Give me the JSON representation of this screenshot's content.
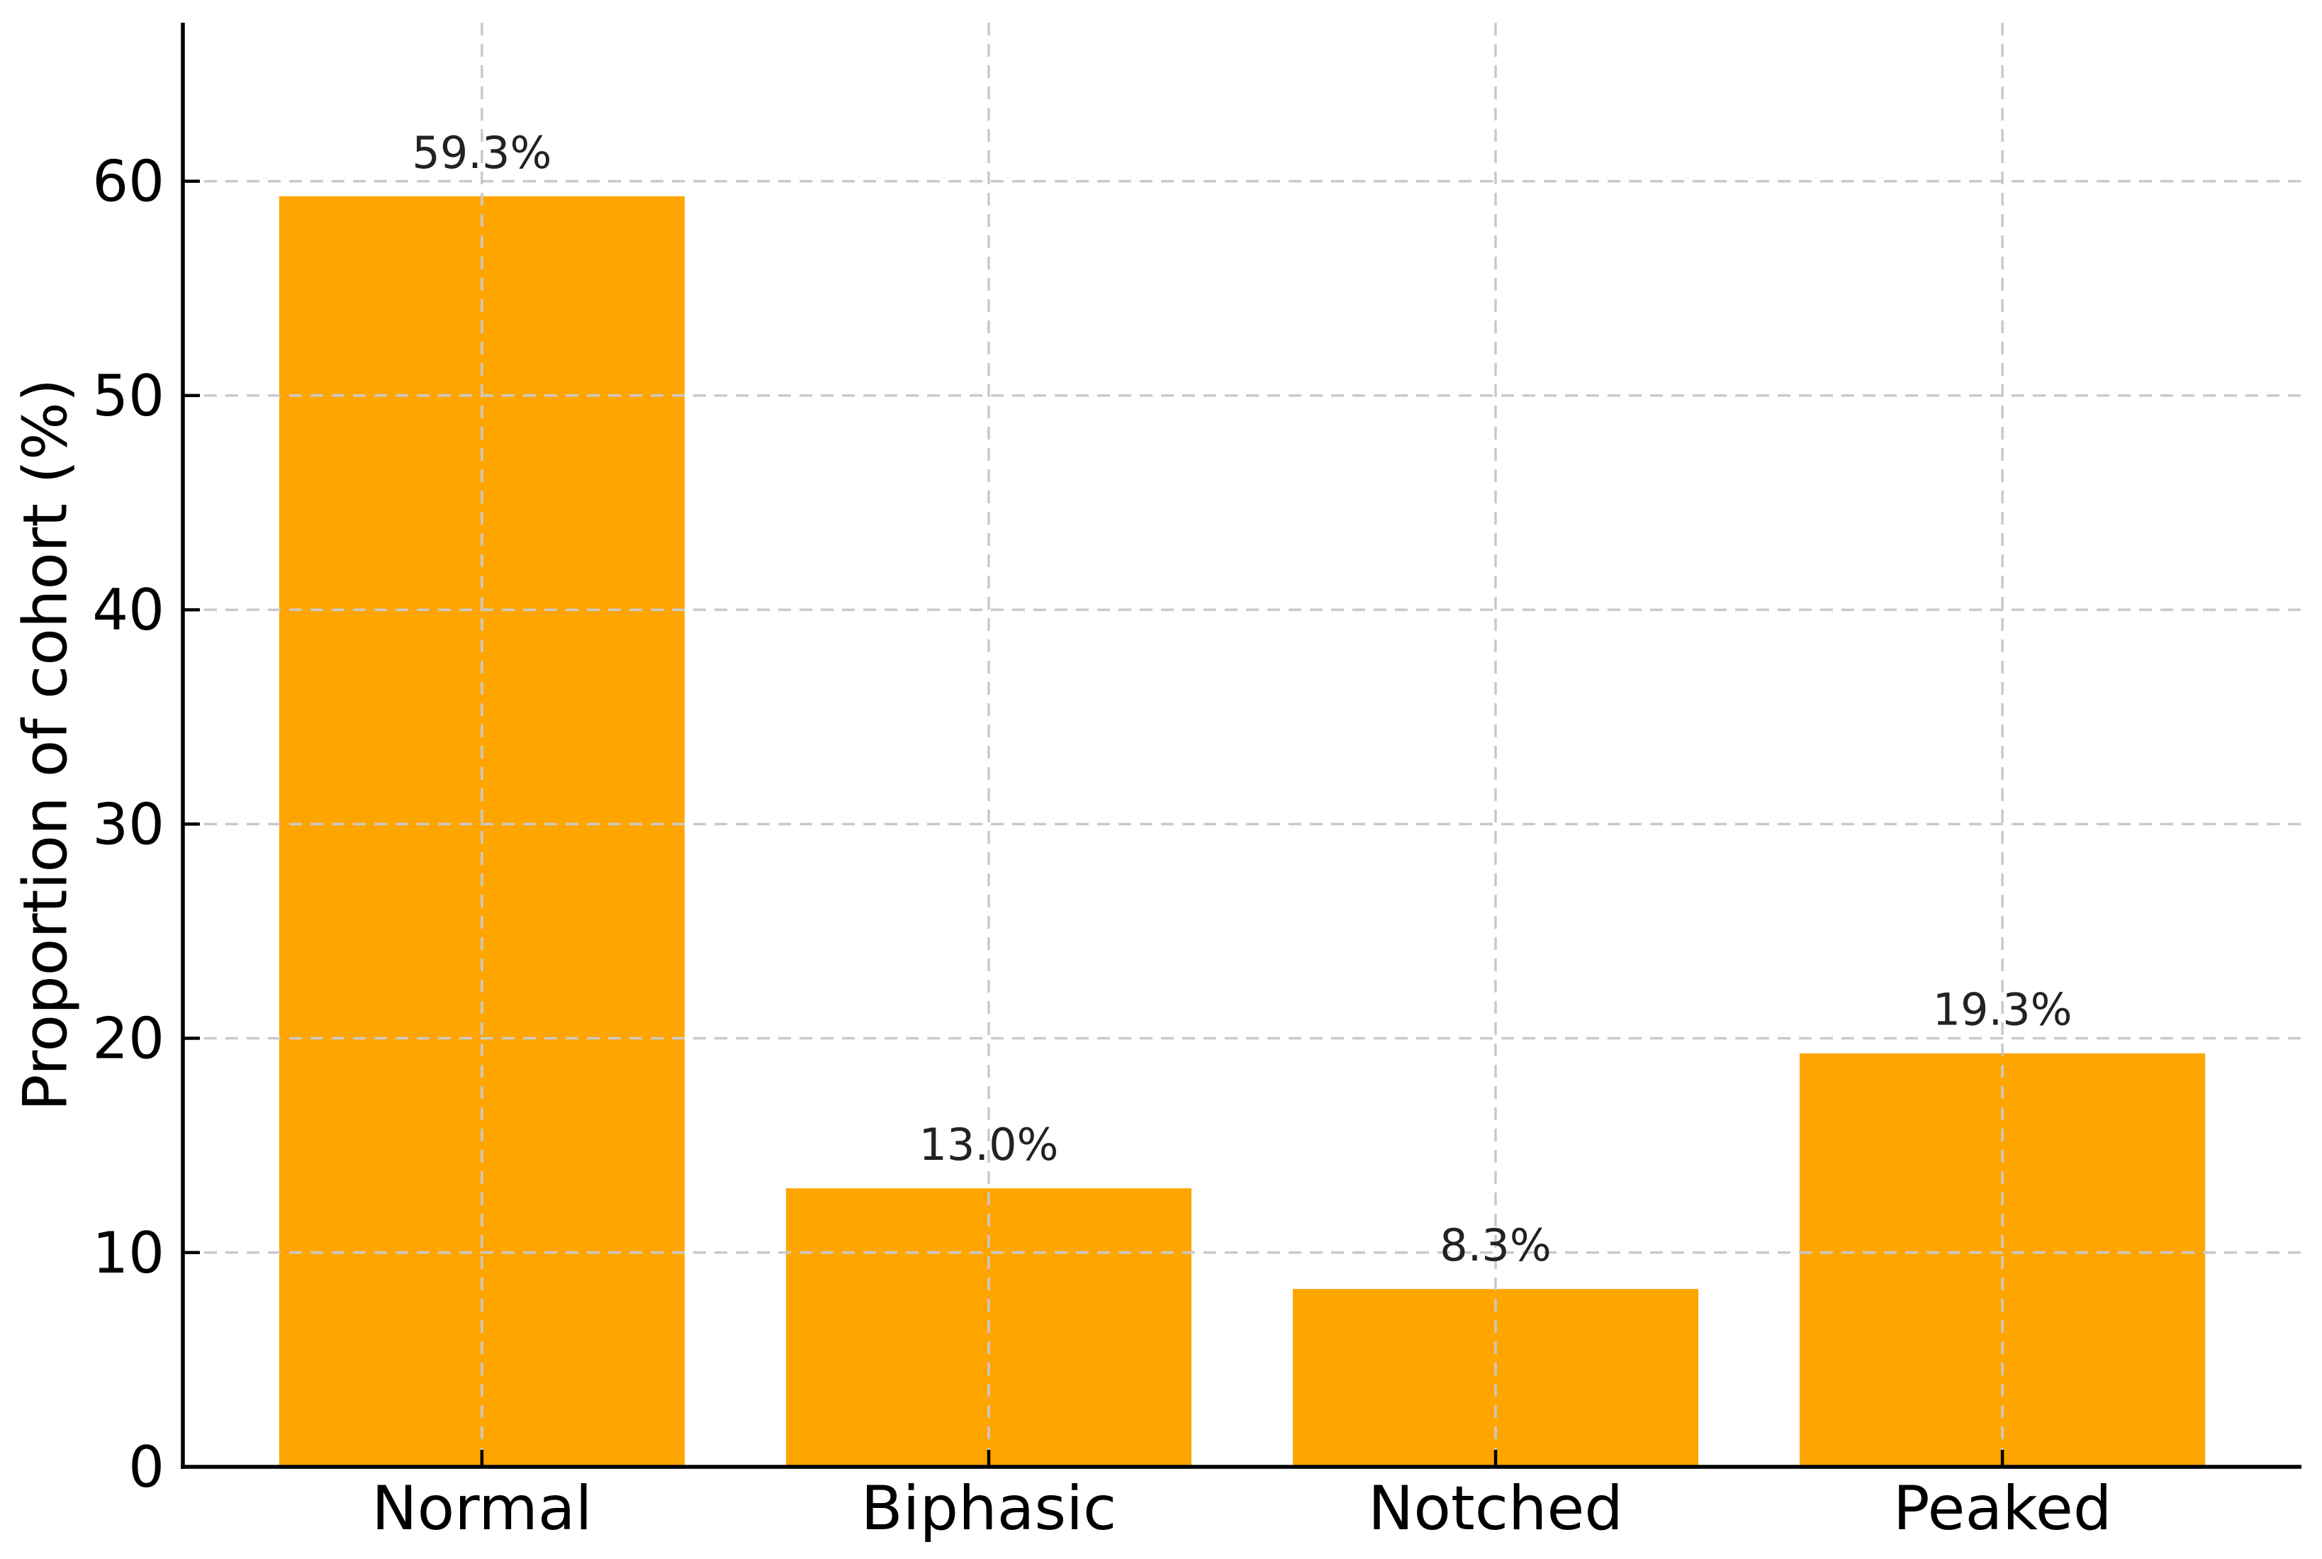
{
  "chart_data": {
    "type": "bar",
    "title": "",
    "xlabel": "",
    "ylabel": "Proportion of cohort (%)",
    "categories": [
      "Normal",
      "Biphasic",
      "Notched",
      "Peaked"
    ],
    "values": [
      59.3,
      13.0,
      8.3,
      19.3
    ],
    "data_labels": [
      "59.3%",
      "13.0%",
      "8.3%",
      "19.3%"
    ],
    "yticks": [
      0,
      10,
      20,
      30,
      40,
      50,
      60
    ],
    "ylim": [
      0,
      67.4
    ],
    "xlim": [
      -0.59,
      3.59
    ],
    "bar_width_units": 0.8,
    "grid": "both-axes, dashed, drawn above bars",
    "legend_position": "none",
    "colors": {
      "bar": "#FFA500",
      "grid": "#c9c9c9",
      "spine": "#000000",
      "tick": "#000000",
      "tick_label": "#000000",
      "data_label": "#222222",
      "axis_label": "#000000",
      "background": "#ffffff"
    }
  }
}
